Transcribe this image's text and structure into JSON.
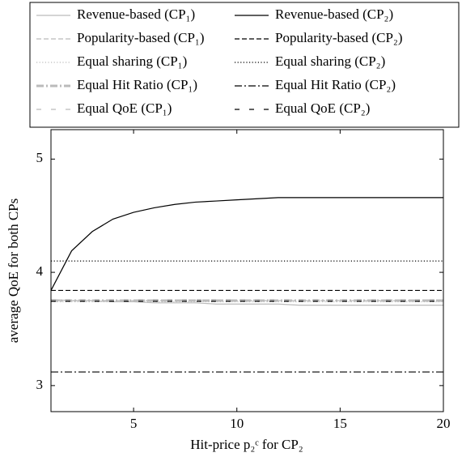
{
  "chart_data": {
    "type": "line",
    "xlabel": "Hit-price p₂ᶜ for CP₂",
    "ylabel": "average QoE for both CPs",
    "x": [
      1,
      2,
      3,
      4,
      5,
      6,
      7,
      8,
      9,
      10,
      11,
      12,
      13,
      14,
      15,
      16,
      17,
      18,
      19,
      20
    ],
    "xlim": [
      1,
      20
    ],
    "xticks": [
      5,
      10,
      15,
      20
    ],
    "ylim": [
      2.77,
      5.26
    ],
    "yticks": [
      3,
      4,
      5
    ],
    "series": [
      {
        "name": "Revenue-based (CP₁)",
        "color": "#bbbbbb",
        "dash": "solid",
        "values": [
          3.76,
          3.75,
          3.75,
          3.74,
          3.74,
          3.73,
          3.73,
          3.73,
          3.72,
          3.72,
          3.72,
          3.72,
          3.71,
          3.71,
          3.71,
          3.71,
          3.71,
          3.71,
          3.71,
          3.71
        ]
      },
      {
        "name": "Revenue-based (CP₂)",
        "color": "#000000",
        "dash": "solid",
        "values": [
          3.84,
          4.19,
          4.36,
          4.47,
          4.53,
          4.57,
          4.6,
          4.62,
          4.63,
          4.64,
          4.65,
          4.66,
          4.66,
          4.66,
          4.66,
          4.66,
          4.66,
          4.66,
          4.66,
          4.66
        ]
      },
      {
        "name": "Popularity-based (CP₁)",
        "color": "#bbbbbb",
        "dash": "dashed",
        "values": [
          3.75,
          3.75,
          3.75,
          3.75,
          3.75,
          3.75,
          3.75,
          3.75,
          3.75,
          3.75,
          3.75,
          3.75,
          3.75,
          3.75,
          3.75,
          3.75,
          3.75,
          3.75,
          3.75,
          3.75
        ]
      },
      {
        "name": "Popularity-based (CP₂)",
        "color": "#000000",
        "dash": "dashed",
        "values": [
          3.84,
          3.84,
          3.84,
          3.84,
          3.84,
          3.84,
          3.84,
          3.84,
          3.84,
          3.84,
          3.84,
          3.84,
          3.84,
          3.84,
          3.84,
          3.84,
          3.84,
          3.84,
          3.84,
          3.84
        ]
      },
      {
        "name": "Equal sharing (CP₁)",
        "color": "#bbbbbb",
        "dash": "dotted",
        "values": [
          3.74,
          3.74,
          3.74,
          3.74,
          3.74,
          3.74,
          3.74,
          3.74,
          3.74,
          3.74,
          3.74,
          3.74,
          3.74,
          3.74,
          3.74,
          3.74,
          3.74,
          3.74,
          3.74,
          3.74
        ]
      },
      {
        "name": "Equal sharing (CP₂)",
        "color": "#000000",
        "dash": "dotted",
        "values": [
          4.1,
          4.1,
          4.1,
          4.1,
          4.1,
          4.1,
          4.1,
          4.1,
          4.1,
          4.1,
          4.1,
          4.1,
          4.1,
          4.1,
          4.1,
          4.1,
          4.1,
          4.1,
          4.1,
          4.1
        ]
      },
      {
        "name": "Equal Hit Ratio (CP₁)",
        "color": "#bbbbbb",
        "dash": "dashdot-thick",
        "values": [
          3.75,
          3.75,
          3.75,
          3.75,
          3.75,
          3.75,
          3.75,
          3.75,
          3.75,
          3.75,
          3.75,
          3.75,
          3.75,
          3.75,
          3.75,
          3.75,
          3.75,
          3.75,
          3.75,
          3.75
        ]
      },
      {
        "name": "Equal Hit Ratio (CP₂)",
        "color": "#000000",
        "dash": "dashdot",
        "values": [
          3.12,
          3.12,
          3.12,
          3.12,
          3.12,
          3.12,
          3.12,
          3.12,
          3.12,
          3.12,
          3.12,
          3.12,
          3.12,
          3.12,
          3.12,
          3.12,
          3.12,
          3.12,
          3.12,
          3.12
        ]
      },
      {
        "name": "Equal QoE (CP₁)",
        "color": "#bbbbbb",
        "dash": "loose",
        "values": [
          3.76,
          3.76,
          3.76,
          3.76,
          3.76,
          3.76,
          3.76,
          3.76,
          3.76,
          3.76,
          3.76,
          3.76,
          3.76,
          3.76,
          3.76,
          3.76,
          3.76,
          3.76,
          3.76,
          3.76
        ]
      },
      {
        "name": "Equal QoE (CP₂)",
        "color": "#000000",
        "dash": "loose",
        "values": [
          3.745,
          3.745,
          3.745,
          3.745,
          3.745,
          3.745,
          3.745,
          3.745,
          3.745,
          3.745,
          3.745,
          3.745,
          3.745,
          3.745,
          3.745,
          3.745,
          3.745,
          3.745,
          3.745,
          3.745
        ]
      }
    ]
  }
}
